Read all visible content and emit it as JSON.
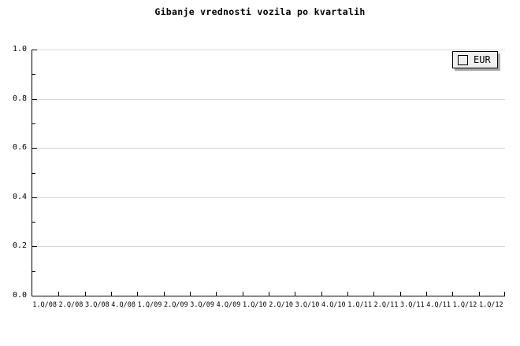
{
  "title": "Gibanje vrednosti vozila po kvartalih",
  "legend": {
    "position": "top-right",
    "entries": [
      {
        "label": "EUR",
        "swatch_color": "#f6c25e"
      }
    ]
  },
  "colors": {
    "background": "#ffffff",
    "axis": "#000000",
    "gridline": "#d8d8d8",
    "legend_background": "#efefef",
    "legend_shadow": "#a9a9a9",
    "series_eur": "#f6c25e",
    "text": "#000000"
  },
  "chart_data": {
    "type": "bar",
    "title": "Gibanje vrednosti vozila po kvartalih",
    "categories": [
      "1.Q/08",
      "2.Q/08",
      "3.Q/08",
      "4.Q/08",
      "1.Q/09",
      "2.Q/09",
      "3.Q/09",
      "4.Q/09",
      "1.Q/10",
      "2.Q/10",
      "3.Q/10",
      "4.Q/10",
      "1.Q/11",
      "2.Q/11",
      "3.Q/11",
      "4.Q/11",
      "1.Q/12",
      "1.Q/12"
    ],
    "series": [
      {
        "name": "EUR",
        "color": "#f6c25e",
        "values": []
      }
    ],
    "xlabel": "",
    "ylabel": "",
    "ylim": [
      0.0,
      1.0
    ],
    "y_major_ticks": [
      0.0,
      0.2,
      0.4,
      0.6,
      0.8,
      1.0
    ],
    "y_tick_labels": [
      "0.0",
      "0.2",
      "0.4",
      "0.6",
      "0.8",
      "1.0"
    ],
    "y_minor_ticks": [
      0.1,
      0.3,
      0.5,
      0.7,
      0.9
    ],
    "grid": "horizontal-major-only",
    "legend_position": "top-right"
  }
}
